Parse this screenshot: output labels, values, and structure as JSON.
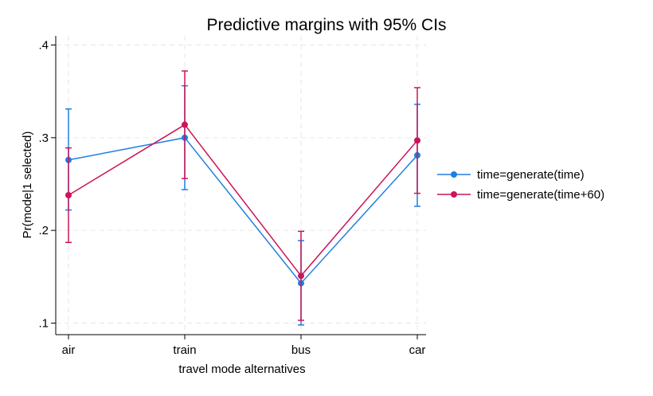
{
  "chart_data": {
    "type": "line",
    "title": "Predictive margins with 95% CIs",
    "xlabel": "travel mode alternatives",
    "ylabel": "Pr(mode|1 selected)",
    "categories": [
      "air",
      "train",
      "bus",
      "car"
    ],
    "ylim": [
      0.1,
      0.4
    ],
    "yticks": [
      0.1,
      0.2,
      0.3,
      0.4
    ],
    "ytick_labels": [
      ".1",
      ".2",
      ".3",
      ".4"
    ],
    "grid": true,
    "legend_position": "right",
    "series": [
      {
        "name": "time=generate(time)",
        "color": "#1f7fe0",
        "values": [
          0.276,
          0.3,
          0.143,
          0.281
        ],
        "ci_low": [
          0.222,
          0.244,
          0.098,
          0.226
        ],
        "ci_high": [
          0.331,
          0.356,
          0.189,
          0.336
        ]
      },
      {
        "name": "time=generate(time+60)",
        "color": "#cc1458",
        "values": [
          0.238,
          0.314,
          0.151,
          0.297
        ],
        "ci_low": [
          0.187,
          0.256,
          0.103,
          0.24
        ],
        "ci_high": [
          0.289,
          0.372,
          0.199,
          0.354
        ]
      }
    ]
  }
}
